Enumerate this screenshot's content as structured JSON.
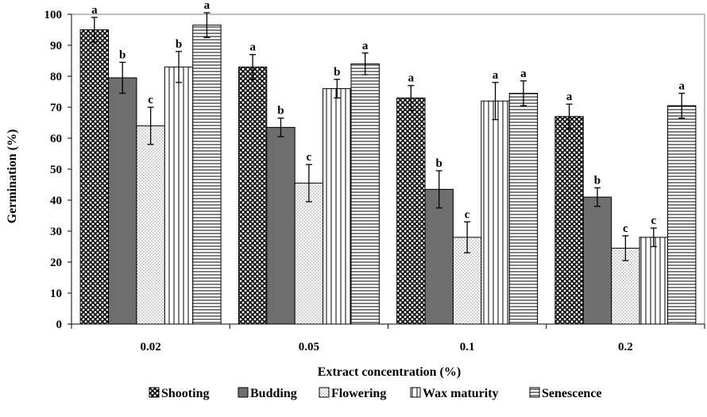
{
  "chart_data": {
    "type": "bar",
    "xlabel": "Extract concentration (%)",
    "ylabel": "Germination (%)",
    "ylim": [
      0,
      100
    ],
    "ytick_step": 10,
    "categories": [
      "0.02",
      "0.05",
      "0.1",
      "0.2"
    ],
    "legend_position": "bottom",
    "grid": false,
    "series": [
      {
        "name": "Shooting",
        "pattern": "crosshatch",
        "values": [
          95,
          83,
          73,
          67
        ],
        "errors": [
          4,
          4,
          4,
          4
        ],
        "labels": [
          "a",
          "a",
          "a",
          "a"
        ]
      },
      {
        "name": "Budding",
        "pattern": "solid-gray",
        "values": [
          79.5,
          63.5,
          43.5,
          41
        ],
        "errors": [
          5,
          3,
          6,
          3
        ],
        "labels": [
          "b",
          "b",
          "b",
          "b"
        ]
      },
      {
        "name": "Flowering",
        "pattern": "dots",
        "values": [
          64,
          45.5,
          28,
          24.5
        ],
        "errors": [
          6,
          6,
          5,
          4
        ],
        "labels": [
          "c",
          "c",
          "c",
          "c"
        ]
      },
      {
        "name": "Wax maturity",
        "pattern": "vertical-lines",
        "values": [
          83,
          76,
          72,
          28
        ],
        "errors": [
          5,
          3,
          6,
          3
        ],
        "labels": [
          "b",
          "b",
          "a",
          "c"
        ]
      },
      {
        "name": "Senescence",
        "pattern": "horizontal-lines",
        "values": [
          96.5,
          84,
          74.5,
          70.5
        ],
        "errors": [
          4,
          3.5,
          4,
          4
        ],
        "labels": [
          "a",
          "a",
          "a",
          "a"
        ]
      }
    ]
  }
}
